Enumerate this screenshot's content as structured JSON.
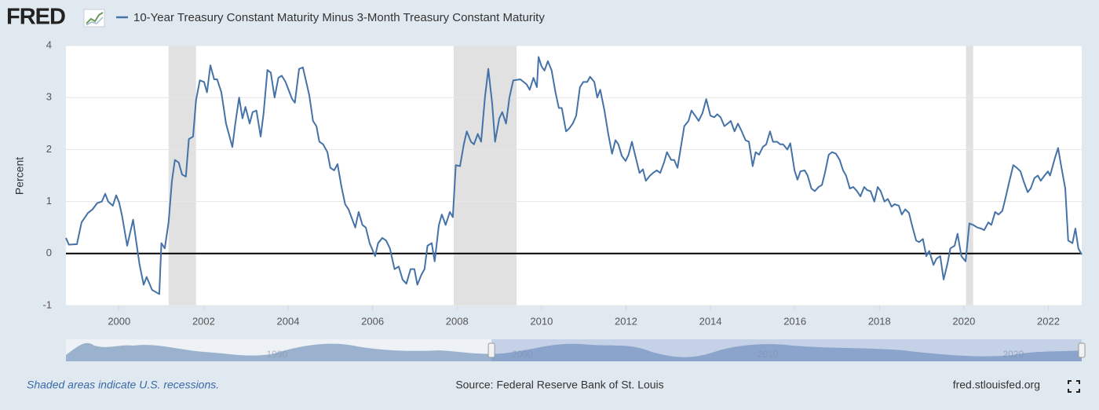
{
  "logo": "FRED",
  "chart_data": {
    "type": "line",
    "y_label": "Percent",
    "x": [
      1998.74,
      1998.81,
      1999.0,
      1999.11,
      1999.26,
      1999.37,
      1999.48,
      1999.59,
      1999.67,
      1999.74,
      1999.85,
      1999.93,
      2000.0,
      2000.07,
      2000.19,
      2000.33,
      2000.48,
      2000.58,
      2000.65,
      2000.78,
      2000.95,
      2001.0,
      2001.08,
      2001.17,
      2001.25,
      2001.32,
      2001.41,
      2001.49,
      2001.58,
      2001.65,
      2001.75,
      2001.82,
      2001.91,
      2002.01,
      2002.08,
      2002.16,
      2002.25,
      2002.32,
      2002.42,
      2002.53,
      2002.68,
      2002.75,
      2002.84,
      2002.92,
      2002.99,
      2003.09,
      2003.16,
      2003.25,
      2003.35,
      2003.42,
      2003.51,
      2003.59,
      2003.68,
      2003.77,
      2003.85,
      2003.94,
      2004.09,
      2004.16,
      2004.26,
      2004.35,
      2004.5,
      2004.59,
      2004.67,
      2004.74,
      2004.83,
      2004.93,
      2005.0,
      2005.09,
      2005.17,
      2005.26,
      2005.35,
      2005.43,
      2005.59,
      2005.67,
      2005.76,
      2005.84,
      2005.93,
      2006.06,
      2006.13,
      2006.23,
      2006.32,
      2006.41,
      2006.52,
      2006.62,
      2006.71,
      2006.8,
      2006.9,
      2006.99,
      2007.06,
      2007.16,
      2007.23,
      2007.3,
      2007.4,
      2007.47,
      2007.57,
      2007.64,
      2007.73,
      2007.83,
      2007.9,
      2007.97,
      2008.07,
      2008.16,
      2008.23,
      2008.33,
      2008.4,
      2008.49,
      2008.57,
      2008.66,
      2008.74,
      2008.83,
      2008.9,
      2009.0,
      2009.07,
      2009.16,
      2009.24,
      2009.33,
      2009.5,
      2009.65,
      2009.72,
      2009.81,
      2009.89,
      2009.93,
      2010.0,
      2010.07,
      2010.15,
      2010.24,
      2010.33,
      2010.41,
      2010.48,
      2010.58,
      2010.65,
      2010.74,
      2010.82,
      2010.91,
      2010.99,
      2011.08,
      2011.15,
      2011.25,
      2011.32,
      2011.39,
      2011.49,
      2011.58,
      2011.67,
      2011.75,
      2011.82,
      2011.9,
      2011.99,
      2012.06,
      2012.14,
      2012.23,
      2012.32,
      2012.4,
      2012.47,
      2012.57,
      2012.64,
      2012.73,
      2012.81,
      2012.9,
      2012.97,
      2013.07,
      2013.14,
      2013.22,
      2013.31,
      2013.38,
      2013.48,
      2013.55,
      2013.64,
      2013.72,
      2013.81,
      2013.9,
      2014.0,
      2014.09,
      2014.16,
      2014.24,
      2014.33,
      2014.41,
      2014.48,
      2014.57,
      2014.65,
      2014.74,
      2014.83,
      2014.91,
      2015.0,
      2015.07,
      2015.15,
      2015.24,
      2015.32,
      2015.41,
      2015.48,
      2015.58,
      2015.65,
      2015.72,
      2015.82,
      2015.89,
      2015.99,
      2016.06,
      2016.13,
      2016.23,
      2016.3,
      2016.39,
      2016.47,
      2016.56,
      2016.64,
      2016.71,
      2016.8,
      2016.88,
      2016.97,
      2017.06,
      2017.14,
      2017.21,
      2017.3,
      2017.38,
      2017.47,
      2017.55,
      2017.64,
      2017.71,
      2017.79,
      2017.88,
      2017.96,
      2018.03,
      2018.12,
      2018.2,
      2018.29,
      2018.36,
      2018.46,
      2018.53,
      2018.61,
      2018.7,
      2018.77,
      2018.87,
      2018.94,
      2019.03,
      2019.11,
      2019.18,
      2019.28,
      2019.35,
      2019.44,
      2019.52,
      2019.61,
      2019.68,
      2019.78,
      2019.85,
      2019.94,
      2020.04,
      2020.13,
      2020.22,
      2020.32,
      2020.41,
      2020.48,
      2020.58,
      2020.65,
      2020.74,
      2020.82,
      2020.91,
      2020.98,
      2021.08,
      2021.17,
      2021.25,
      2021.34,
      2021.41,
      2021.51,
      2021.58,
      2021.67,
      2021.75,
      2021.82,
      2021.91,
      2021.99,
      2022.04,
      2022.16,
      2022.23,
      2022.3,
      2022.4,
      2022.47,
      2022.57,
      2022.64,
      2022.71,
      2022.79
    ],
    "series": [
      {
        "name": "10-Year Treasury Constant Maturity Minus 3-Month Treasury Constant Maturity",
        "color": "#4572a7",
        "values": [
          0.3,
          0.17,
          0.18,
          0.6,
          0.78,
          0.85,
          0.97,
          1.0,
          1.15,
          1.0,
          0.92,
          1.12,
          0.98,
          0.72,
          0.15,
          0.65,
          -0.2,
          -0.6,
          -0.45,
          -0.7,
          -0.78,
          0.2,
          0.1,
          0.6,
          1.4,
          1.8,
          1.75,
          1.52,
          1.48,
          2.2,
          2.25,
          2.95,
          3.33,
          3.3,
          3.1,
          3.62,
          3.35,
          3.35,
          3.1,
          2.5,
          2.05,
          2.5,
          3.0,
          2.6,
          2.82,
          2.5,
          2.72,
          2.75,
          2.25,
          2.7,
          3.53,
          3.48,
          3.0,
          3.38,
          3.42,
          3.3,
          2.98,
          2.9,
          3.55,
          3.58,
          3.05,
          2.55,
          2.45,
          2.15,
          2.1,
          1.95,
          1.65,
          1.6,
          1.72,
          1.3,
          0.95,
          0.85,
          0.5,
          0.8,
          0.55,
          0.5,
          0.2,
          -0.05,
          0.2,
          0.3,
          0.25,
          0.1,
          -0.3,
          -0.25,
          -0.5,
          -0.58,
          -0.3,
          -0.3,
          -0.6,
          -0.4,
          -0.3,
          0.15,
          0.2,
          -0.15,
          0.55,
          0.75,
          0.55,
          0.8,
          0.7,
          1.7,
          1.68,
          2.1,
          2.35,
          2.15,
          2.1,
          2.3,
          2.15,
          3.0,
          3.55,
          2.9,
          2.15,
          2.6,
          2.72,
          2.5,
          3.0,
          3.33,
          3.35,
          3.25,
          3.15,
          3.38,
          3.2,
          3.78,
          3.6,
          3.52,
          3.7,
          3.52,
          3.1,
          2.8,
          2.8,
          2.35,
          2.4,
          2.5,
          2.65,
          3.2,
          3.3,
          3.3,
          3.4,
          3.3,
          3.0,
          3.15,
          2.75,
          2.3,
          1.92,
          2.18,
          2.1,
          1.88,
          1.78,
          1.9,
          2.15,
          1.85,
          1.55,
          1.62,
          1.4,
          1.5,
          1.55,
          1.6,
          1.55,
          1.75,
          1.95,
          1.8,
          1.8,
          1.65,
          2.1,
          2.45,
          2.55,
          2.75,
          2.65,
          2.55,
          2.7,
          2.97,
          2.65,
          2.62,
          2.68,
          2.62,
          2.45,
          2.5,
          2.55,
          2.35,
          2.5,
          2.35,
          2.18,
          2.15,
          1.68,
          1.95,
          1.9,
          2.05,
          2.1,
          2.35,
          2.15,
          2.15,
          2.1,
          2.1,
          2.0,
          2.12,
          1.6,
          1.42,
          1.58,
          1.6,
          1.5,
          1.25,
          1.2,
          1.28,
          1.32,
          1.55,
          1.9,
          1.95,
          1.92,
          1.8,
          1.6,
          1.5,
          1.25,
          1.28,
          1.2,
          1.1,
          1.28,
          1.22,
          1.2,
          1.0,
          1.28,
          1.2,
          1.0,
          1.05,
          0.9,
          0.95,
          0.92,
          0.75,
          0.85,
          0.78,
          0.55,
          0.25,
          0.22,
          0.28,
          -0.05,
          0.05,
          -0.22,
          -0.1,
          -0.05,
          -0.5,
          -0.2,
          0.1,
          0.15,
          0.38,
          -0.05,
          -0.15,
          0.58,
          0.55,
          0.5,
          0.48,
          0.45,
          0.6,
          0.55,
          0.8,
          0.75,
          0.82,
          1.05,
          1.4,
          1.7,
          1.65,
          1.58,
          1.4,
          1.18,
          1.25,
          1.45,
          1.5,
          1.4,
          1.5,
          1.58,
          1.5,
          1.85,
          2.03,
          1.7,
          1.25,
          0.25,
          0.2,
          0.48,
          0.1,
          -0.02
        ]
      }
    ],
    "recessions": [
      [
        2001.17,
        2001.82
      ],
      [
        2007.92,
        2009.41
      ],
      [
        2020.05,
        2020.22
      ]
    ],
    "recession_color": "#e1e1e1",
    "xlim": [
      1998.74,
      2022.79
    ],
    "xticks": [
      2000,
      2002,
      2004,
      2006,
      2008,
      2010,
      2012,
      2014,
      2016,
      2018,
      2020,
      2022
    ],
    "ylim": [
      -1,
      4
    ],
    "yticks": [
      -1,
      0,
      1,
      2,
      3,
      4
    ],
    "grid": true,
    "navigator": {
      "xlim": [
        1981.4,
        2022.79
      ],
      "xticks": [
        1990,
        2000,
        2010,
        2020
      ]
    }
  },
  "footer": {
    "note": "Shaded areas indicate U.S. recessions.",
    "source": "Source: Federal Reserve Bank of St. Louis",
    "site": "fred.stlouisfed.org"
  }
}
